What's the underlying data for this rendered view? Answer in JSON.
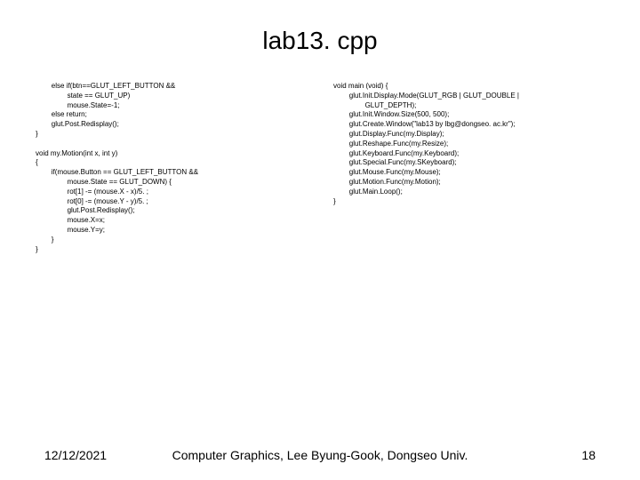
{
  "title": "lab13. cpp",
  "code_left": "        else if(btn==GLUT_LEFT_BUTTON &&\n                state == GLUT_UP)\n                mouse.State=-1;\n        else return;\n        glut.Post.Redisplay();\n}\n\nvoid my.Motion(int x, int y)\n{\n        if(mouse.Button == GLUT_LEFT_BUTTON &&\n                mouse.State == GLUT_DOWN) {\n                rot[1] -= (mouse.X - x)/5. ;\n                rot[0] -= (mouse.Y - y)/5. ;\n                glut.Post.Redisplay();\n                mouse.X=x;\n                mouse.Y=y;\n        }\n}",
  "code_right": "void main (void) {\n        glut.Init.Display.Mode(GLUT_RGB | GLUT_DOUBLE |\n                GLUT_DEPTH);\n        glut.Init.Window.Size(500, 500);\n        glut.Create.Window(\"lab13 by lbg@dongseo. ac.kr\");\n        glut.Display.Func(my.Display);\n        glut.Reshape.Func(my.Resize);\n        glut.Keyboard.Func(my.Keyboard);\n        glut.Special.Func(my.SKeyboard);\n        glut.Mouse.Func(my.Mouse);\n        glut.Motion.Func(my.Motion);\n        glut.Main.Loop();\n}",
  "footer_date": "12/12/2021",
  "footer_center": "Computer Graphics, Lee Byung-Gook, Dongseo Univ.",
  "footer_page": "18"
}
